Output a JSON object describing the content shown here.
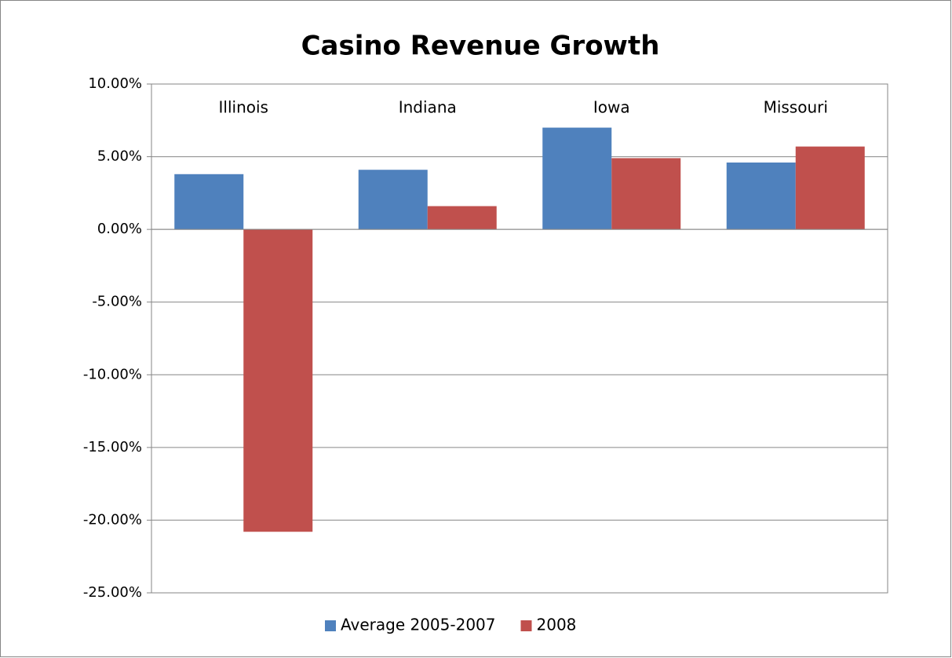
{
  "chart_data": {
    "type": "bar",
    "title": "Casino Revenue Growth",
    "categories": [
      "Illinois",
      "Indiana",
      "Iowa",
      "Missouri"
    ],
    "series": [
      {
        "name": "Average 2005-2007",
        "color": "#4f81bd",
        "values": [
          3.8,
          4.1,
          7.0,
          4.6
        ]
      },
      {
        "name": "2008",
        "color": "#c0504d",
        "values": [
          -20.8,
          1.6,
          4.9,
          5.7
        ]
      }
    ],
    "ylim": [
      -25,
      10
    ],
    "yticks": [
      {
        "value": -25,
        "label": "-25.00%"
      },
      {
        "value": -20,
        "label": "-20.00%"
      },
      {
        "value": -15,
        "label": "-15.00%"
      },
      {
        "value": -10,
        "label": "-10.00%"
      },
      {
        "value": -5,
        "label": "-5.00%"
      },
      {
        "value": 0,
        "label": "0.00%"
      },
      {
        "value": 5,
        "label": "5.00%"
      },
      {
        "value": 10,
        "label": "10.00%"
      }
    ],
    "grid": true,
    "legend": "bottom"
  }
}
